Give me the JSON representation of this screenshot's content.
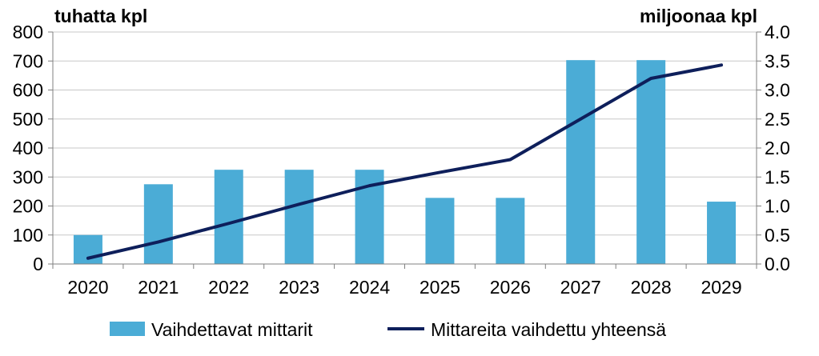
{
  "chart_data": {
    "type": "bar+line",
    "categories": [
      "2020",
      "2021",
      "2022",
      "2023",
      "2024",
      "2025",
      "2026",
      "2027",
      "2028",
      "2029"
    ],
    "series": [
      {
        "name": "Vaihdettavat mittarit",
        "type": "bar",
        "axis": "left",
        "color": "#4bacd6",
        "values": [
          100,
          275,
          325,
          325,
          325,
          228,
          228,
          703,
          703,
          215
        ]
      },
      {
        "name": "Mittareita vaihdettu yhteensä",
        "type": "line",
        "axis": "right",
        "color": "#0e1f5b",
        "values": [
          0.1,
          0.38,
          0.7,
          1.03,
          1.35,
          1.58,
          1.8,
          2.5,
          3.2,
          3.43
        ]
      }
    ],
    "left_axis": {
      "unit_label": "tuhatta kpl",
      "ylim": [
        0,
        800
      ],
      "ticks": [
        "0",
        "100",
        "200",
        "300",
        "400",
        "500",
        "600",
        "700",
        "800"
      ]
    },
    "right_axis": {
      "unit_label": "miljoonaa kpl",
      "ylim": [
        0,
        4
      ],
      "ticks": [
        "0.0",
        "0.5",
        "1.0",
        "1.5",
        "2.0",
        "2.5",
        "3.0",
        "3.5",
        "4.0"
      ]
    },
    "grid": true,
    "legend": "bottom"
  }
}
